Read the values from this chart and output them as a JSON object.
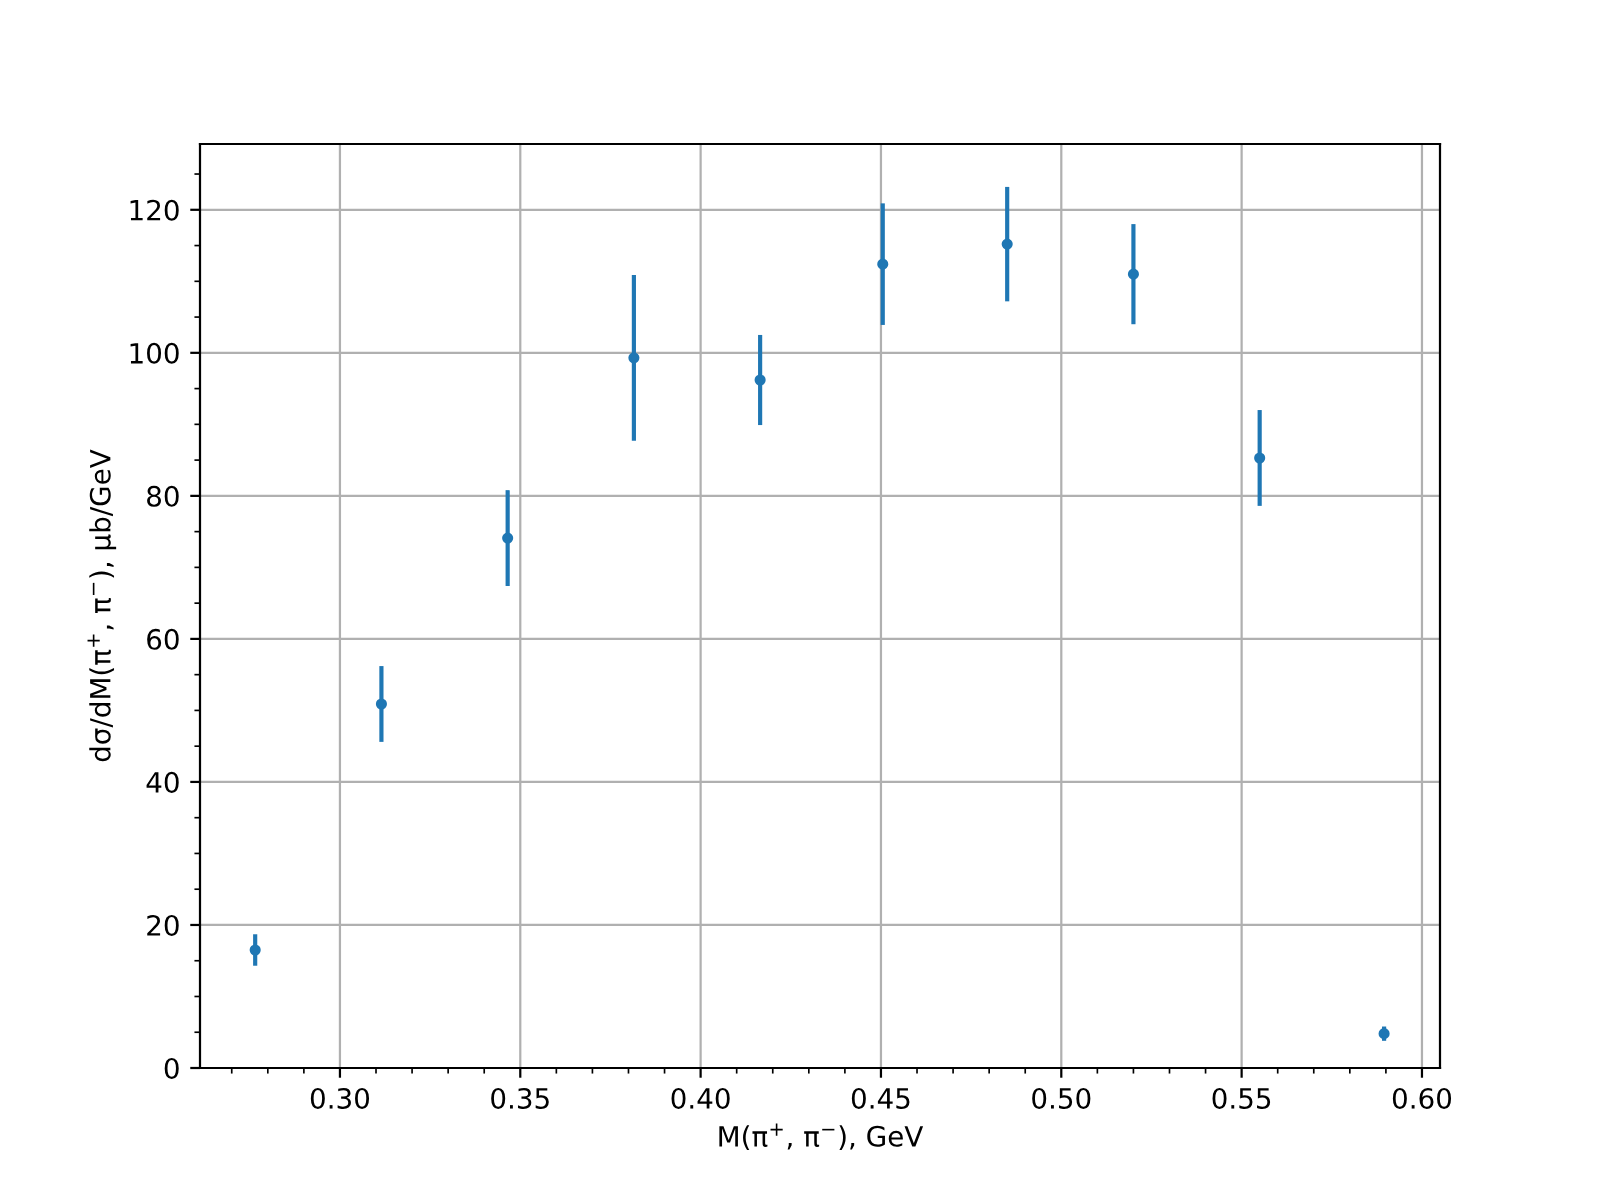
{
  "chart_data": {
    "type": "scatter",
    "xlabel": "M(π$^{+}$, π$^{−}$), GeV",
    "ylabel": "dσ/dM(π$^{+}$, π$^{−}$), μb/GeV",
    "x": [
      0.2765,
      0.3115,
      0.3465,
      0.3815,
      0.4165,
      0.4505,
      0.485,
      0.52,
      0.555,
      0.5895
    ],
    "series": [
      {
        "color": "#1f77b4",
        "values": [
          16.5,
          50.9,
          74.1,
          99.3,
          96.2,
          112.4,
          115.2,
          111.0,
          85.3,
          4.8
        ],
        "errors": [
          2.2,
          5.3,
          6.7,
          11.6,
          6.3,
          8.5,
          8.0,
          7.0,
          6.7,
          1.0
        ]
      }
    ],
    "marker": "circle",
    "xlim": [
      0.2612,
      0.605
    ],
    "ylim": [
      0,
      129.2
    ],
    "xticks": [
      {
        "value": 0.3,
        "label": "0.30"
      },
      0.35,
      {
        "value": 0.4,
        "label": "0.40"
      },
      0.45,
      {
        "value": 0.5,
        "label": "0.50"
      },
      0.55,
      {
        "value": 0.6,
        "label": "0.60"
      }
    ],
    "yticks": [
      0,
      20,
      40,
      60,
      80,
      100,
      120
    ],
    "grid": true
  }
}
